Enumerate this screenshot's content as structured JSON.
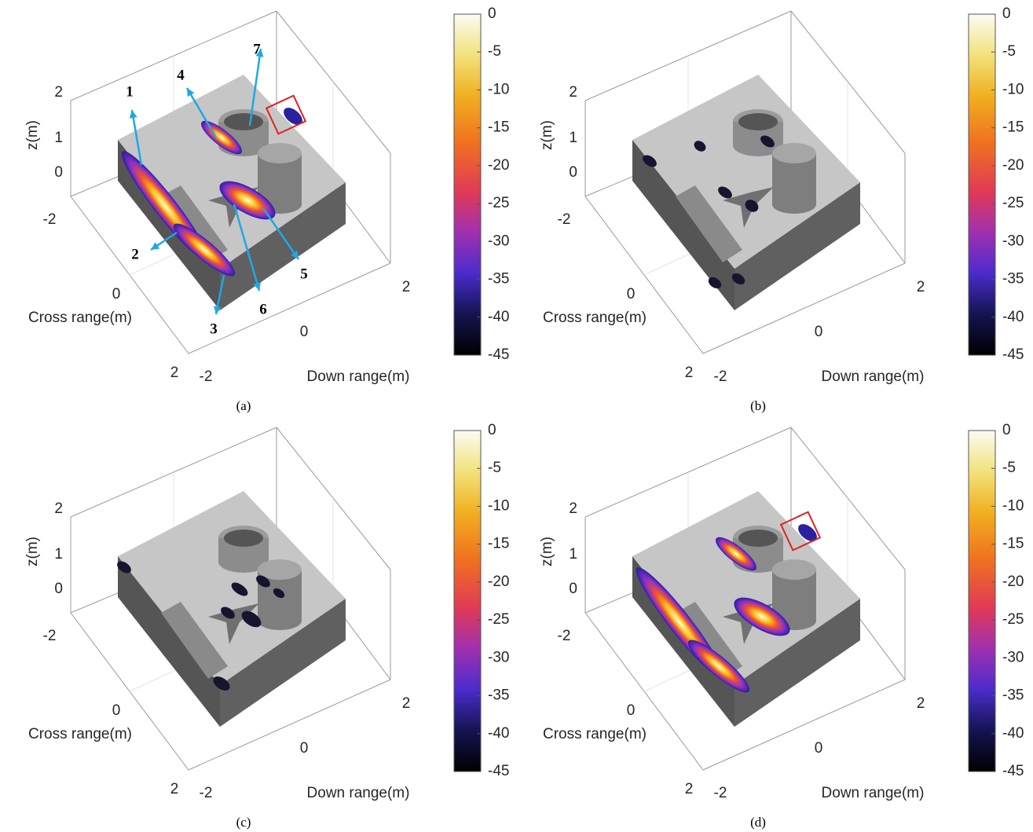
{
  "panels": [
    {
      "caption": "(a)",
      "z_label": "z(m)",
      "cross_label": "Cross range(m)",
      "down_label": "Down range(m)",
      "z_ticks": [
        2,
        1,
        0
      ],
      "cross_ticks": [
        -2,
        0,
        2
      ],
      "down_ticks": [
        -2,
        0,
        2
      ],
      "colorbar": {
        "lim": [
          -45,
          0
        ],
        "ticks": [
          0,
          -5,
          -10,
          -15,
          -20,
          -25,
          -30,
          -35,
          -40,
          -45
        ]
      },
      "annotations": [
        "1",
        "2",
        "3",
        "4",
        "5",
        "6",
        "7"
      ]
    },
    {
      "caption": "(b)",
      "z_label": "z(m)",
      "cross_label": "Cross range(m)",
      "down_label": "Down range(m)",
      "z_ticks": [
        2,
        1,
        0
      ],
      "cross_ticks": [
        -2,
        0,
        2
      ],
      "down_ticks": [
        -2,
        0,
        2
      ],
      "colorbar": {
        "lim": [
          -45,
          0
        ],
        "ticks": [
          0,
          -5,
          -10,
          -15,
          -20,
          -25,
          -30,
          -35,
          -40,
          -45
        ]
      }
    },
    {
      "caption": "(c)",
      "z_label": "z(m)",
      "cross_label": "Cross range(m)",
      "down_label": "Down range(m)",
      "z_ticks": [
        2,
        1,
        0
      ],
      "cross_ticks": [
        -2,
        0,
        2
      ],
      "down_ticks": [
        -2,
        0,
        2
      ],
      "colorbar": {
        "lim": [
          -45,
          0
        ],
        "ticks": [
          0,
          -5,
          -10,
          -15,
          -20,
          -25,
          -30,
          -35,
          -40,
          -45
        ]
      }
    },
    {
      "caption": "(d)",
      "z_label": "z(m)",
      "cross_label": "Cross range(m)",
      "down_label": "Down range(m)",
      "z_ticks": [
        2,
        1,
        0
      ],
      "cross_ticks": [
        -2,
        0,
        2
      ],
      "down_ticks": [
        -2,
        0,
        2
      ],
      "colorbar": {
        "lim": [
          -45,
          0
        ],
        "ticks": [
          0,
          -5,
          -10,
          -15,
          -20,
          -25,
          -30,
          -35,
          -40,
          -45
        ]
      }
    }
  ]
}
